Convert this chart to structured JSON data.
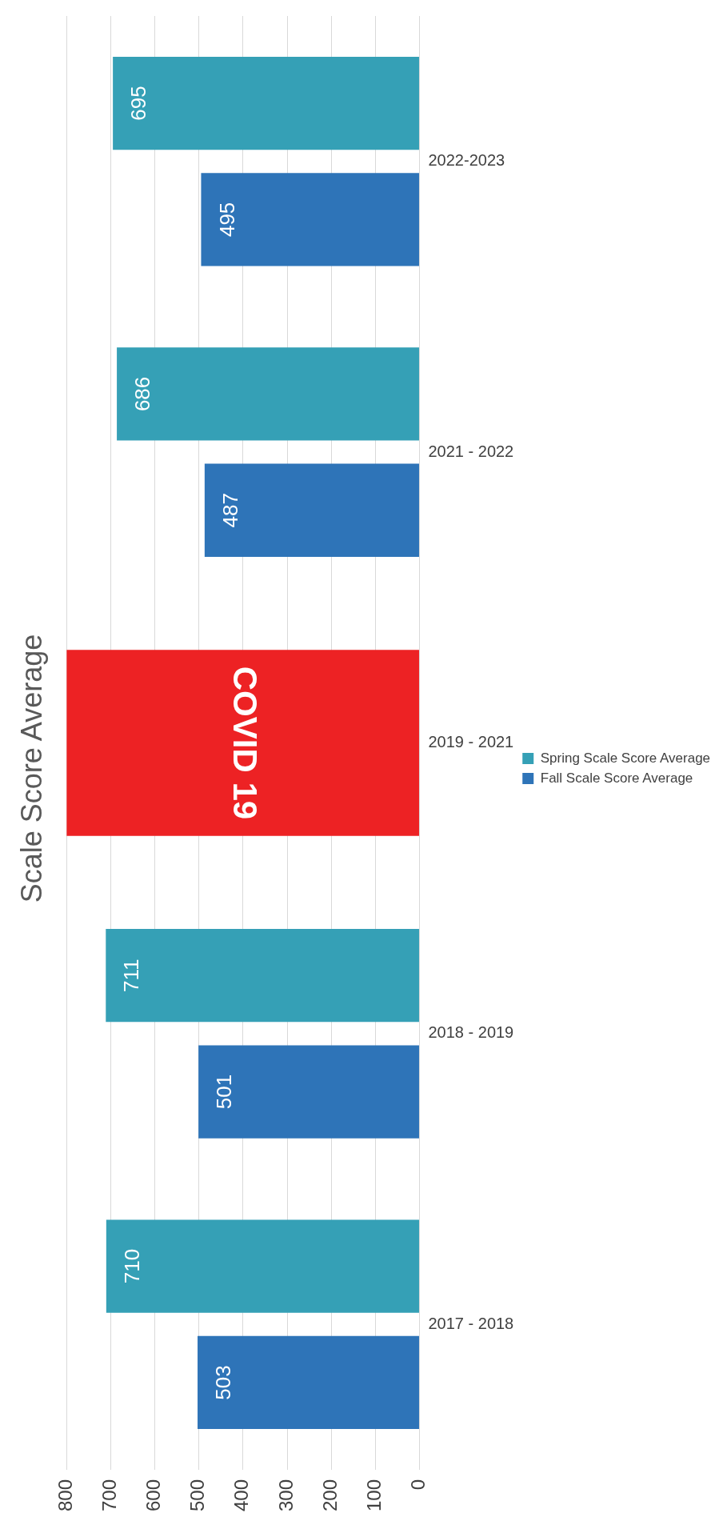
{
  "chart_data": {
    "type": "bar",
    "title": "Scale Score Average",
    "orientation": "horizontal",
    "categories": [
      "2022-2023",
      "2021 - 2022",
      "2019 - 2021",
      "2018 - 2019",
      "2017 - 2018"
    ],
    "series": [
      {
        "name": "Spring Scale Score Average",
        "color": "#35a0b6",
        "values": [
          695,
          686,
          null,
          711,
          710
        ],
        "value_labels": [
          "695",
          "686",
          null,
          "711",
          "710"
        ]
      },
      {
        "name": "Fall Scale Score Average",
        "color": "#2e74b8",
        "values": [
          495,
          487,
          null,
          501,
          503
        ],
        "value_labels": [
          "495",
          "487",
          null,
          "501",
          "503"
        ]
      },
      {
        "color": "#ed2224",
        "values": [
          null,
          null,
          800,
          null,
          null
        ],
        "value_labels": [
          null,
          null,
          "COVID 19",
          null,
          null
        ]
      }
    ],
    "xlim": [
      800,
      0
    ],
    "xticks": [
      0,
      100,
      200,
      300,
      400,
      500,
      600,
      700,
      800
    ],
    "grid": "x",
    "legend": "right"
  }
}
